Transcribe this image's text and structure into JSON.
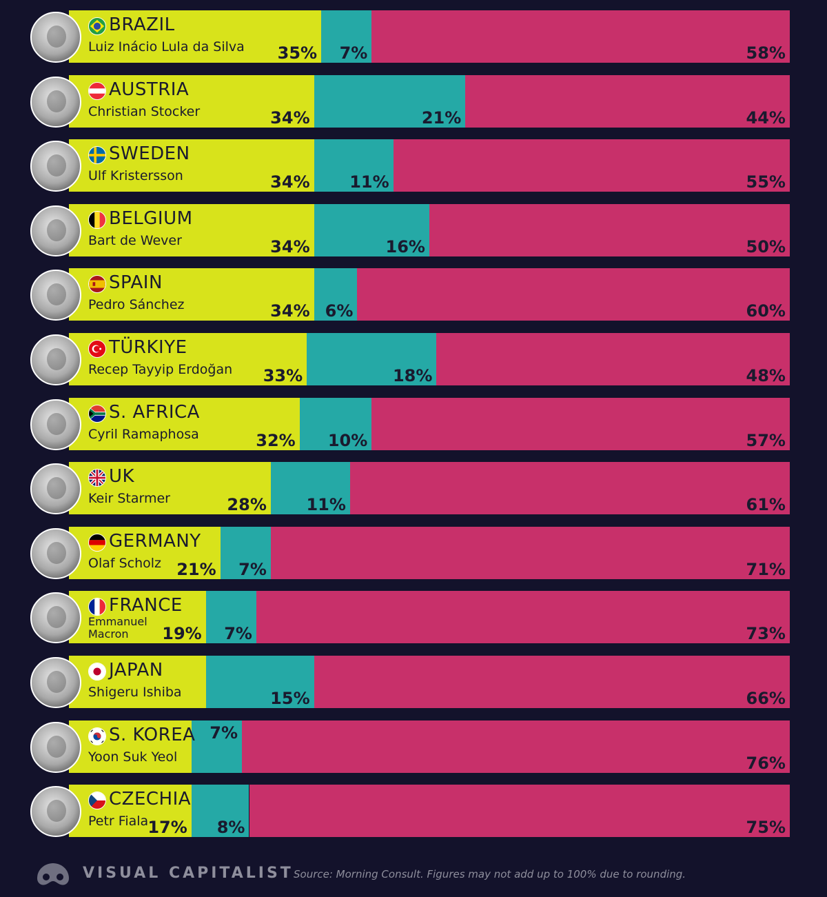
{
  "chart_data": {
    "type": "bar",
    "orientation": "horizontal",
    "stacked": true,
    "colors": {
      "approve": "#d8e31b",
      "neutral": "#25a9a6",
      "disapprove": "#c8306a"
    },
    "rows": [
      {
        "country": "BRAZIL",
        "leader": "Luiz Inácio Lula da Silva",
        "flag": "brazil-flag-icon",
        "approve": 35,
        "neutral": 7,
        "disapprove": 58,
        "approve_label": "35%",
        "neutral_label": "7%",
        "disapprove_label": "58%"
      },
      {
        "country": "AUSTRIA",
        "leader": "Christian Stocker",
        "flag": "austria-flag-icon",
        "approve": 34,
        "neutral": 21,
        "disapprove": 44,
        "approve_label": "34%",
        "neutral_label": "21%",
        "disapprove_label": "44%"
      },
      {
        "country": "SWEDEN",
        "leader": "Ulf Kristersson",
        "flag": "sweden-flag-icon",
        "approve": 34,
        "neutral": 11,
        "disapprove": 55,
        "approve_label": "34%",
        "neutral_label": "11%",
        "disapprove_label": "55%"
      },
      {
        "country": "BELGIUM",
        "leader": "Bart de Wever",
        "flag": "belgium-flag-icon",
        "approve": 34,
        "neutral": 16,
        "disapprove": 50,
        "approve_label": "34%",
        "neutral_label": "16%",
        "disapprove_label": "50%"
      },
      {
        "country": "SPAIN",
        "leader": "Pedro Sánchez",
        "flag": "spain-flag-icon",
        "approve": 34,
        "neutral": 6,
        "disapprove": 60,
        "approve_label": "34%",
        "neutral_label": "6%",
        "disapprove_label": "60%"
      },
      {
        "country": "TÜRKIYE",
        "leader": "Recep Tayyip Erdoğan",
        "flag": "turkiye-flag-icon",
        "approve": 33,
        "neutral": 18,
        "disapprove": 48,
        "approve_label": "33%",
        "neutral_label": "18%",
        "disapprove_label": "48%"
      },
      {
        "country": "S. AFRICA",
        "leader": "Cyril Ramaphosa",
        "flag": "south-africa-flag-icon",
        "approve": 32,
        "neutral": 10,
        "disapprove": 57,
        "approve_label": "32%",
        "neutral_label": "10%",
        "disapprove_label": "57%"
      },
      {
        "country": "UK",
        "leader": "Keir Starmer",
        "flag": "uk-flag-icon",
        "approve": 28,
        "neutral": 11,
        "disapprove": 61,
        "approve_label": "28%",
        "neutral_label": "11%",
        "disapprove_label": "61%"
      },
      {
        "country": "GERMANY",
        "leader": "Olaf Scholz",
        "flag": "germany-flag-icon",
        "approve": 21,
        "neutral": 7,
        "disapprove": 71,
        "approve_label": "21%",
        "neutral_label": "7%",
        "disapprove_label": "71%"
      },
      {
        "country": "FRANCE",
        "leader": "Emmanuel Macron",
        "flag": "france-flag-icon",
        "approve": 19,
        "neutral": 7,
        "disapprove": 73,
        "approve_label": "19%",
        "neutral_label": "7%",
        "disapprove_label": "73%"
      },
      {
        "country": "JAPAN",
        "leader": "Shigeru Ishiba",
        "flag": "japan-flag-icon",
        "approve": 19,
        "neutral": 15,
        "disapprove": 66,
        "approve_label": "",
        "neutral_label": "15%",
        "disapprove_label": "66%"
      },
      {
        "country": "S. KOREA",
        "leader": "Yoon Suk Yeol",
        "flag": "south-korea-flag-icon",
        "approve": 17,
        "neutral": 7,
        "disapprove": 76,
        "approve_label": "",
        "neutral_label": "7%",
        "disapprove_label": "76%"
      },
      {
        "country": "CZECHIA",
        "leader": "Petr Fiala",
        "flag": "czechia-flag-icon",
        "approve": 17,
        "neutral": 8,
        "disapprove": 75,
        "approve_label": "17%",
        "neutral_label": "8%",
        "disapprove_label": "75%"
      }
    ]
  },
  "footer": {
    "brand": "VISUAL CAPITALIST",
    "logo_icon": "visual-capitalist-logo-icon",
    "source": "Source: Morning Consult. Figures may not add up to 100% due to rounding."
  }
}
